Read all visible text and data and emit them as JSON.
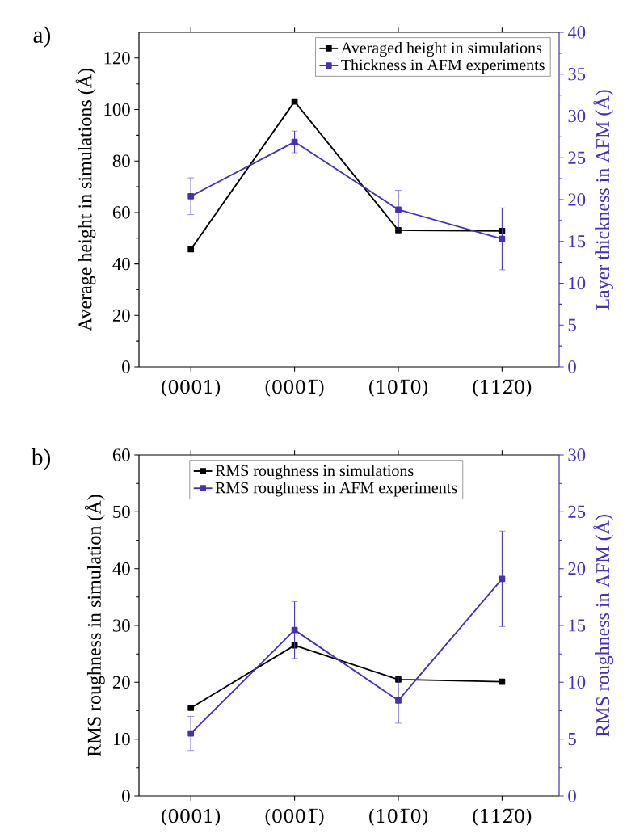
{
  "chart_data": [
    {
      "type": "line",
      "annotations": [
        "a)"
      ],
      "categories": [
        "(0001)",
        "(0001̅)",
        "(101̅0)",
        "(112̅0)"
      ],
      "ylabel": "Average height in simulations (Å)",
      "y2label": "Layer thickness in AFM (Å)",
      "ylim": [
        0,
        130
      ],
      "yticks": [
        0,
        20,
        40,
        60,
        80,
        100,
        120
      ],
      "y2lim": [
        0,
        40
      ],
      "y2ticks": [
        0,
        5,
        10,
        15,
        20,
        25,
        30,
        35,
        40
      ],
      "legend": "top right",
      "marker": "square",
      "series": [
        {
          "name": "Averaged height in simulations",
          "color": "#000000",
          "values": [
            45.7,
            103.1,
            53.1,
            52.8
          ]
        },
        {
          "name": "Thickness in AFM experiments",
          "color": "#4a2fb5",
          "axis": "y2",
          "values": [
            20.4,
            26.9,
            18.8,
            15.3
          ],
          "errors": [
            2.2,
            1.3,
            2.3,
            3.7
          ]
        }
      ]
    },
    {
      "type": "line",
      "annotations": [
        "b)"
      ],
      "categories": [
        "(0001)",
        "(0001̅)",
        "(101̅0)",
        "(112̅0)"
      ],
      "ylabel": "RMS roughness in simulation (Å)",
      "y2label": "RMS roughness in AFM (Å)",
      "ylim": [
        0,
        60
      ],
      "yticks": [
        0,
        10,
        20,
        30,
        40,
        50,
        60
      ],
      "y2lim": [
        0,
        30
      ],
      "y2ticks": [
        0,
        5,
        10,
        15,
        20,
        25,
        30
      ],
      "legend": "top left",
      "marker": "square",
      "series": [
        {
          "name": "RMS roughness in simulations",
          "color": "#000000",
          "values": [
            15.5,
            26.5,
            20.5,
            20.1
          ]
        },
        {
          "name": "RMS roughness in AFM experiments",
          "color": "#4a2fb5",
          "axis": "y2",
          "values": [
            5.5,
            14.6,
            8.4,
            19.1
          ],
          "errors": [
            1.5,
            2.5,
            2.0,
            4.2
          ]
        }
      ]
    }
  ]
}
